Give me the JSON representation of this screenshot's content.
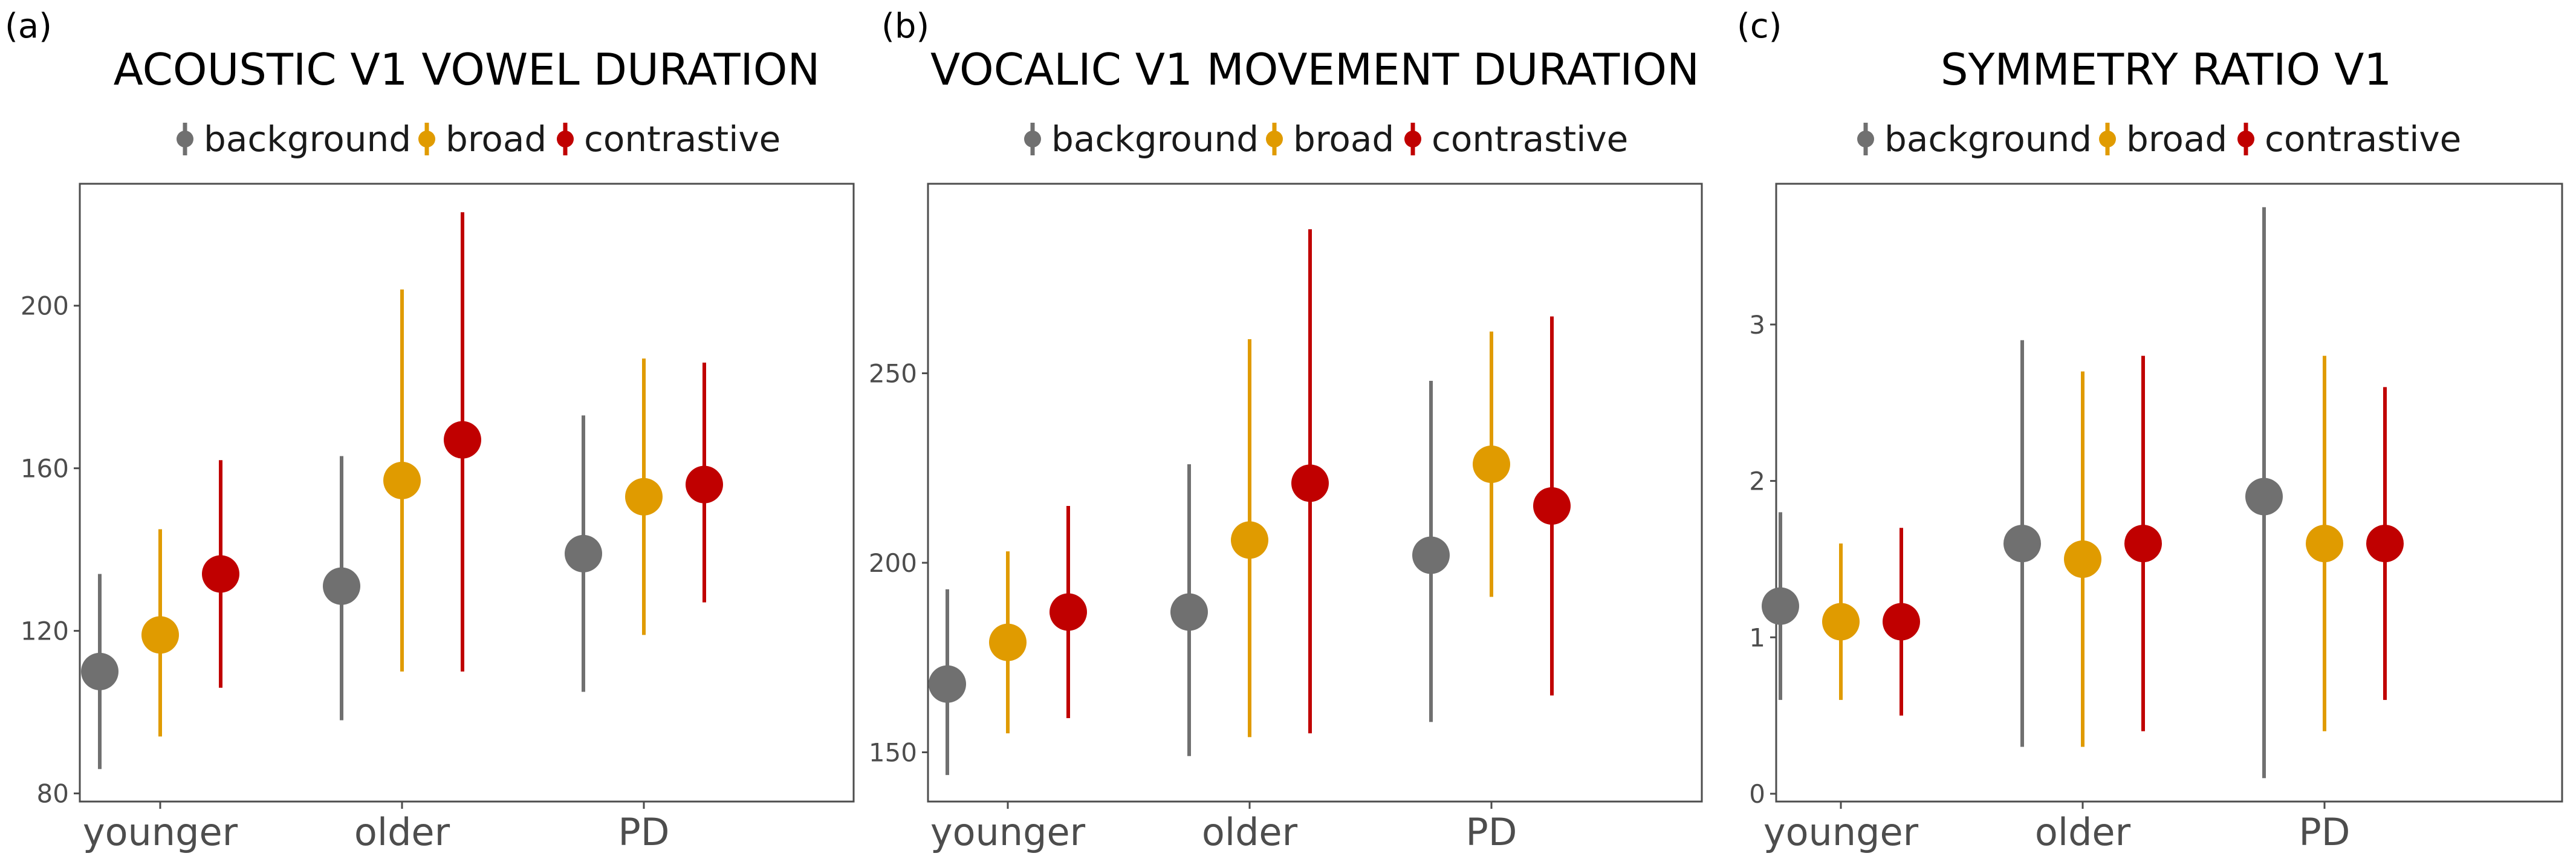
{
  "colors": {
    "background": "#707070",
    "broad": "#E09B00",
    "contrastive": "#C00000"
  },
  "chart_data": [
    {
      "panel_label": "(a)",
      "type": "scatter",
      "title": "ACOUSTIC V1 VOWEL DURATION",
      "categories": [
        "younger",
        "older",
        "PD"
      ],
      "ylim": [
        78,
        230
      ],
      "yticks": [
        "80",
        "120",
        "160",
        "200"
      ],
      "ytick_values": [
        80,
        120,
        160,
        200
      ],
      "legend_position": "top",
      "series": [
        {
          "name": "background",
          "values": [
            110,
            131,
            139
          ],
          "lower": [
            86,
            98,
            105
          ],
          "upper": [
            134,
            163,
            173
          ]
        },
        {
          "name": "broad",
          "values": [
            119,
            157,
            153
          ],
          "lower": [
            94,
            110,
            119
          ],
          "upper": [
            145,
            204,
            187
          ]
        },
        {
          "name": "contrastive",
          "values": [
            134,
            167,
            156
          ],
          "lower": [
            106,
            110,
            127
          ],
          "upper": [
            162,
            223,
            186
          ]
        }
      ]
    },
    {
      "panel_label": "(b)",
      "type": "scatter",
      "title": "VOCALIC V1 MOVEMENT DURATION",
      "categories": [
        "younger",
        "older",
        "PD"
      ],
      "ylim": [
        137,
        300
      ],
      "yticks": [
        "150",
        "200",
        "250"
      ],
      "ytick_values": [
        150,
        200,
        250
      ],
      "legend_position": "top",
      "series": [
        {
          "name": "background",
          "values": [
            168,
            187,
            202
          ],
          "lower": [
            144,
            149,
            158
          ],
          "upper": [
            193,
            226,
            248
          ]
        },
        {
          "name": "broad",
          "values": [
            179,
            206,
            226
          ],
          "lower": [
            155,
            154,
            191
          ],
          "upper": [
            203,
            259,
            261
          ]
        },
        {
          "name": "contrastive",
          "values": [
            187,
            221,
            215
          ],
          "lower": [
            159,
            155,
            165
          ],
          "upper": [
            215,
            288,
            265
          ]
        }
      ]
    },
    {
      "panel_label": "(c)",
      "type": "scatter",
      "title": "SYMMETRY RATIO V1",
      "categories": [
        "younger",
        "older",
        "PD"
      ],
      "ylim": [
        -0.05,
        3.9
      ],
      "yticks": [
        "0",
        "1",
        "2",
        "3"
      ],
      "ytick_values": [
        0,
        1,
        2,
        3
      ],
      "legend_position": "top",
      "series": [
        {
          "name": "background",
          "values": [
            1.2,
            1.6,
            1.9
          ],
          "lower": [
            0.6,
            0.3,
            0.1
          ],
          "upper": [
            1.8,
            2.9,
            3.75
          ]
        },
        {
          "name": "broad",
          "values": [
            1.1,
            1.5,
            1.6
          ],
          "lower": [
            0.6,
            0.3,
            0.4
          ],
          "upper": [
            1.6,
            2.7,
            2.8
          ]
        },
        {
          "name": "contrastive",
          "values": [
            1.1,
            1.6,
            1.6
          ],
          "lower": [
            0.5,
            0.4,
            0.6
          ],
          "upper": [
            1.7,
            2.8,
            2.6
          ]
        }
      ]
    }
  ]
}
